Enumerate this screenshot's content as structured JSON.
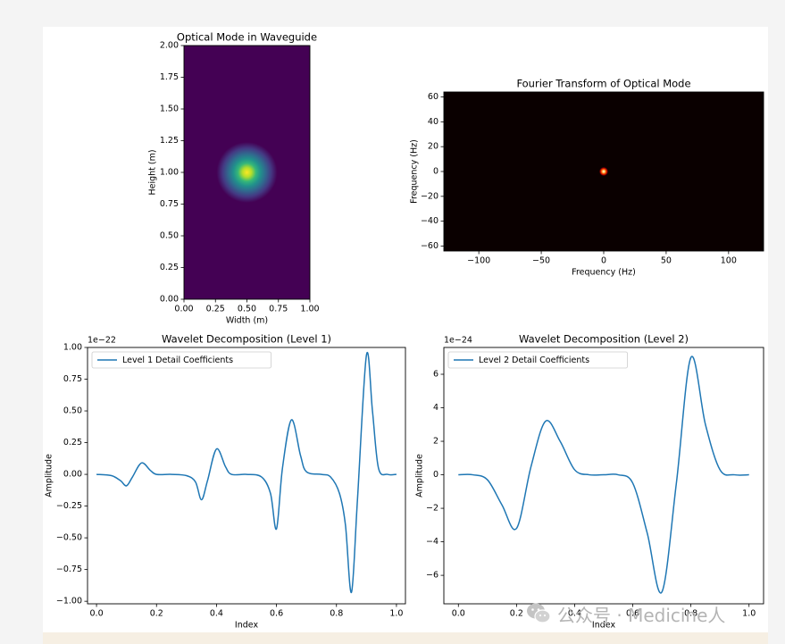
{
  "chart_data": [
    {
      "type": "heatmap",
      "title": "Optical Mode in Waveguide",
      "xlabel": "Width (m)",
      "ylabel": "Height (m)",
      "xlim": [
        0,
        1
      ],
      "ylim": [
        0,
        2
      ],
      "xticks": [
        "0.00",
        "0.25",
        "0.50",
        "0.75",
        "1.00"
      ],
      "yticks": [
        "0.00",
        "0.25",
        "0.50",
        "0.75",
        "1.00",
        "1.25",
        "1.50",
        "1.75",
        "2.00"
      ],
      "peak": {
        "x": 0.5,
        "y": 1.0
      },
      "colormap": "viridis"
    },
    {
      "type": "heatmap",
      "title": "Fourier Transform of Optical Mode",
      "xlabel": "Frequency (Hz)",
      "ylabel": "Frequency (Hz)",
      "xlim": [
        -128,
        128
      ],
      "ylim": [
        -64,
        64
      ],
      "xticks": [
        "−100",
        "−50",
        "0",
        "50",
        "100"
      ],
      "yticks": [
        "−60",
        "−40",
        "−20",
        "0",
        "20",
        "40",
        "60"
      ],
      "peak": {
        "x": 0,
        "y": 0
      },
      "colormap": "hot"
    },
    {
      "type": "line",
      "title": "Wavelet Decomposition (Level 1)",
      "xlabel": "Index",
      "ylabel": "Amplitude",
      "scale_label": "1e−22",
      "xlim": [
        -0.03,
        1.03
      ],
      "ylim": [
        -1.02,
        1.0
      ],
      "xticks": [
        "0.0",
        "0.2",
        "0.4",
        "0.6",
        "0.8",
        "1.0"
      ],
      "yticks": [
        "−1.00",
        "−0.75",
        "−0.50",
        "−0.25",
        "0.00",
        "0.25",
        "0.50",
        "0.75",
        "1.00"
      ],
      "legend": "top-left",
      "series": [
        {
          "name": "Level 1 Detail Coefficients",
          "color": "#1f77b4",
          "x": [
            0.0,
            0.05,
            0.08,
            0.1,
            0.12,
            0.15,
            0.18,
            0.2,
            0.25,
            0.3,
            0.33,
            0.35,
            0.37,
            0.4,
            0.43,
            0.45,
            0.5,
            0.55,
            0.58,
            0.6,
            0.62,
            0.65,
            0.68,
            0.7,
            0.75,
            0.78,
            0.81,
            0.83,
            0.85,
            0.87,
            0.9,
            0.92,
            0.94,
            0.97,
            1.0
          ],
          "y": [
            0.0,
            -0.01,
            -0.05,
            -0.09,
            -0.02,
            0.09,
            0.03,
            0.0,
            0.0,
            -0.01,
            -0.06,
            -0.2,
            -0.05,
            0.2,
            0.06,
            0.0,
            0.0,
            -0.02,
            -0.15,
            -0.43,
            0.05,
            0.43,
            0.15,
            0.02,
            0.0,
            -0.02,
            -0.15,
            -0.4,
            -0.93,
            -0.2,
            0.94,
            0.5,
            0.05,
            0.0,
            0.0
          ]
        }
      ]
    },
    {
      "type": "line",
      "title": "Wavelet Decomposition (Level 2)",
      "xlabel": "Index",
      "ylabel": "Amplitude",
      "scale_label": "1e−24",
      "xlim": [
        -0.05,
        1.05
      ],
      "ylim": [
        -7.7,
        7.6
      ],
      "xticks": [
        "0.0",
        "0.2",
        "0.4",
        "0.6",
        "0.8",
        "1.0"
      ],
      "yticks": [
        "−6",
        "−4",
        "−2",
        "0",
        "2",
        "4",
        "6"
      ],
      "legend": "top-left",
      "series": [
        {
          "name": "Level 2 Detail Coefficients",
          "color": "#1f77b4",
          "x": [
            0.0,
            0.05,
            0.1,
            0.15,
            0.2,
            0.25,
            0.3,
            0.35,
            0.4,
            0.45,
            0.5,
            0.55,
            0.6,
            0.65,
            0.7,
            0.75,
            0.8,
            0.85,
            0.9,
            0.95,
            1.0
          ],
          "y": [
            0.0,
            0.0,
            -0.3,
            -1.8,
            -3.2,
            0.5,
            3.2,
            2.0,
            0.3,
            0.0,
            0.0,
            0.0,
            -0.5,
            -3.5,
            -7.0,
            -0.5,
            7.0,
            3.0,
            0.3,
            0.0,
            0.0
          ]
        }
      ]
    }
  ],
  "watermark": {
    "text": "公众号 · Medicine人",
    "icon": "wechat-icon"
  }
}
